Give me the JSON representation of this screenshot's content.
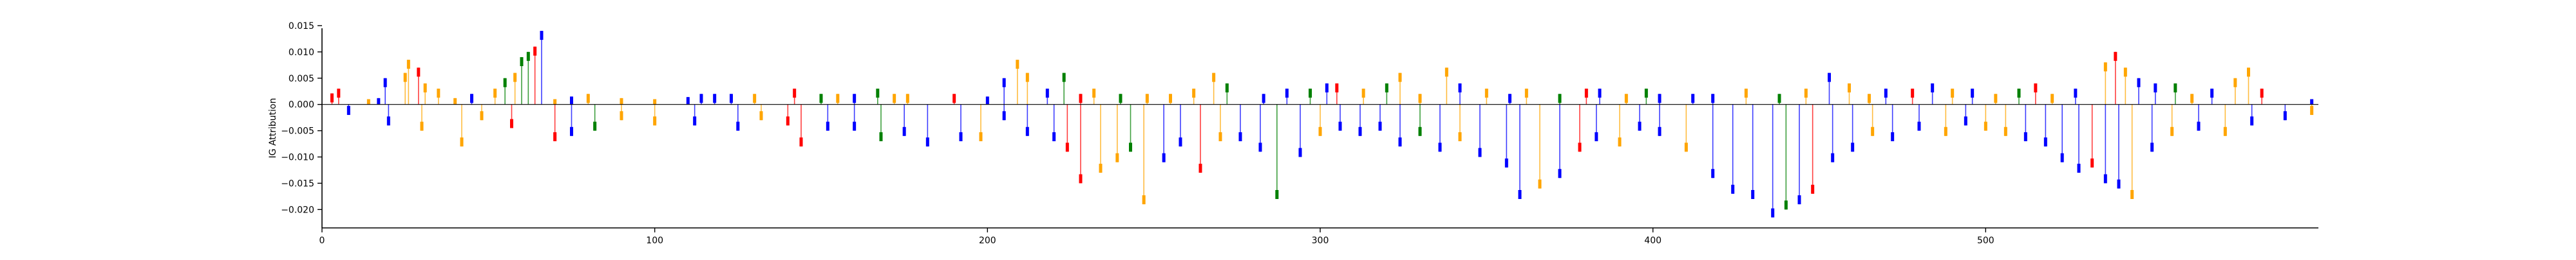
{
  "chart_data": {
    "type": "bar",
    "title": "",
    "xlabel": "",
    "ylabel": "IG Attribution",
    "xlim": [
      0,
      600
    ],
    "ylim": [
      -0.0235,
      0.0145
    ],
    "xticks": [
      0,
      100,
      200,
      300,
      400,
      500
    ],
    "yticks": [
      0.015,
      0.01,
      0.005,
      0.0,
      -0.005,
      -0.01,
      -0.015,
      -0.02
    ],
    "ytick_labels": [
      "0.015",
      "0.010",
      "0.005",
      "0.000",
      "−0.005",
      "−0.010",
      "−0.015",
      "−0.020"
    ],
    "grid": false,
    "legend": false,
    "colors": {
      "A": "#008000",
      "C": "#0000ff",
      "G": "#ffa500",
      "T": "#ff0000",
      "axis": "#000000"
    },
    "series": [
      {
        "base": "positive",
        "points": [
          [
            3,
            0.0021,
            "T"
          ],
          [
            5,
            0.003,
            "T"
          ],
          [
            14,
            0.001,
            "G"
          ],
          [
            17,
            0.0012,
            "C"
          ],
          [
            19,
            0.005,
            "C"
          ],
          [
            25,
            0.006,
            "G"
          ],
          [
            26,
            0.0085,
            "G"
          ],
          [
            29,
            0.007,
            "T"
          ],
          [
            31,
            0.004,
            "G"
          ],
          [
            35,
            0.003,
            "G"
          ],
          [
            40,
            0.0012,
            "G"
          ],
          [
            45,
            0.002,
            "C"
          ],
          [
            52,
            0.003,
            "G"
          ],
          [
            55,
            0.005,
            "A"
          ],
          [
            58,
            0.006,
            "G"
          ],
          [
            60,
            0.009,
            "A"
          ],
          [
            62,
            0.01,
            "A"
          ],
          [
            64,
            0.011,
            "T"
          ],
          [
            66,
            0.014,
            "C"
          ],
          [
            70,
            0.001,
            "G"
          ],
          [
            75,
            0.0015,
            "C"
          ],
          [
            80,
            0.002,
            "G"
          ],
          [
            90,
            0.0012,
            "G"
          ],
          [
            100,
            0.001,
            "G"
          ],
          [
            110,
            0.0014,
            "C"
          ],
          [
            114,
            0.002,
            "C"
          ],
          [
            118,
            0.002,
            "C"
          ],
          [
            123,
            0.002,
            "C"
          ],
          [
            130,
            0.002,
            "G"
          ],
          [
            142,
            0.003,
            "T"
          ],
          [
            150,
            0.002,
            "A"
          ],
          [
            155,
            0.002,
            "G"
          ],
          [
            160,
            0.002,
            "C"
          ],
          [
            167,
            0.003,
            "A"
          ],
          [
            172,
            0.002,
            "G"
          ],
          [
            176,
            0.002,
            "G"
          ],
          [
            190,
            0.002,
            "T"
          ],
          [
            200,
            0.0015,
            "C"
          ],
          [
            205,
            0.005,
            "C"
          ],
          [
            209,
            0.0085,
            "G"
          ],
          [
            212,
            0.006,
            "G"
          ],
          [
            218,
            0.003,
            "C"
          ],
          [
            223,
            0.006,
            "A"
          ],
          [
            228,
            0.002,
            "T"
          ],
          [
            232,
            0.003,
            "G"
          ],
          [
            240,
            0.002,
            "A"
          ],
          [
            248,
            0.002,
            "G"
          ],
          [
            255,
            0.002,
            "G"
          ],
          [
            262,
            0.003,
            "G"
          ],
          [
            268,
            0.006,
            "G"
          ],
          [
            272,
            0.004,
            "A"
          ],
          [
            283,
            0.002,
            "C"
          ],
          [
            290,
            0.003,
            "C"
          ],
          [
            297,
            0.003,
            "A"
          ],
          [
            302,
            0.004,
            "C"
          ],
          [
            305,
            0.004,
            "T"
          ],
          [
            313,
            0.003,
            "G"
          ],
          [
            320,
            0.004,
            "A"
          ],
          [
            324,
            0.006,
            "G"
          ],
          [
            330,
            0.002,
            "G"
          ],
          [
            338,
            0.007,
            "G"
          ],
          [
            342,
            0.004,
            "C"
          ],
          [
            350,
            0.003,
            "G"
          ],
          [
            357,
            0.002,
            "C"
          ],
          [
            362,
            0.003,
            "G"
          ],
          [
            372,
            0.002,
            "A"
          ],
          [
            380,
            0.003,
            "T"
          ],
          [
            384,
            0.003,
            "C"
          ],
          [
            392,
            0.002,
            "G"
          ],
          [
            398,
            0.003,
            "A"
          ],
          [
            402,
            0.002,
            "C"
          ],
          [
            412,
            0.002,
            "C"
          ],
          [
            418,
            0.002,
            "C"
          ],
          [
            428,
            0.003,
            "G"
          ],
          [
            438,
            0.002,
            "A"
          ],
          [
            446,
            0.003,
            "G"
          ],
          [
            453,
            0.006,
            "C"
          ],
          [
            459,
            0.004,
            "G"
          ],
          [
            465,
            0.002,
            "G"
          ],
          [
            470,
            0.003,
            "C"
          ],
          [
            478,
            0.003,
            "T"
          ],
          [
            484,
            0.004,
            "C"
          ],
          [
            490,
            0.003,
            "G"
          ],
          [
            496,
            0.003,
            "C"
          ],
          [
            503,
            0.002,
            "G"
          ],
          [
            510,
            0.003,
            "A"
          ],
          [
            515,
            0.004,
            "T"
          ],
          [
            520,
            0.002,
            "G"
          ],
          [
            527,
            0.003,
            "C"
          ],
          [
            536,
            0.008,
            "G"
          ],
          [
            539,
            0.01,
            "T"
          ],
          [
            542,
            0.007,
            "G"
          ],
          [
            546,
            0.005,
            "C"
          ],
          [
            551,
            0.004,
            "C"
          ],
          [
            557,
            0.004,
            "A"
          ],
          [
            562,
            0.002,
            "G"
          ],
          [
            568,
            0.003,
            "C"
          ],
          [
            575,
            0.005,
            "G"
          ],
          [
            579,
            0.007,
            "G"
          ],
          [
            583,
            0.003,
            "T"
          ],
          [
            598,
            0.001,
            "C"
          ]
        ]
      },
      {
        "base": "negative",
        "points": [
          [
            8,
            -0.002,
            "C"
          ],
          [
            20,
            -0.004,
            "C"
          ],
          [
            30,
            -0.005,
            "G"
          ],
          [
            42,
            -0.008,
            "G"
          ],
          [
            48,
            -0.003,
            "G"
          ],
          [
            57,
            -0.0045,
            "T"
          ],
          [
            70,
            -0.007,
            "T"
          ],
          [
            75,
            -0.006,
            "C"
          ],
          [
            82,
            -0.005,
            "A"
          ],
          [
            90,
            -0.003,
            "G"
          ],
          [
            100,
            -0.004,
            "G"
          ],
          [
            112,
            -0.004,
            "C"
          ],
          [
            125,
            -0.005,
            "C"
          ],
          [
            132,
            -0.003,
            "G"
          ],
          [
            140,
            -0.004,
            "T"
          ],
          [
            144,
            -0.008,
            "T"
          ],
          [
            152,
            -0.005,
            "C"
          ],
          [
            160,
            -0.005,
            "C"
          ],
          [
            168,
            -0.007,
            "A"
          ],
          [
            175,
            -0.006,
            "C"
          ],
          [
            182,
            -0.008,
            "C"
          ],
          [
            192,
            -0.007,
            "C"
          ],
          [
            198,
            -0.007,
            "G"
          ],
          [
            205,
            -0.003,
            "C"
          ],
          [
            212,
            -0.006,
            "C"
          ],
          [
            220,
            -0.007,
            "C"
          ],
          [
            224,
            -0.009,
            "T"
          ],
          [
            228,
            -0.015,
            "T"
          ],
          [
            234,
            -0.013,
            "G"
          ],
          [
            239,
            -0.011,
            "G"
          ],
          [
            243,
            -0.009,
            "A"
          ],
          [
            247,
            -0.019,
            "G"
          ],
          [
            253,
            -0.011,
            "C"
          ],
          [
            258,
            -0.008,
            "C"
          ],
          [
            264,
            -0.013,
            "T"
          ],
          [
            270,
            -0.007,
            "G"
          ],
          [
            276,
            -0.007,
            "C"
          ],
          [
            282,
            -0.009,
            "C"
          ],
          [
            287,
            -0.018,
            "A"
          ],
          [
            294,
            -0.01,
            "C"
          ],
          [
            300,
            -0.006,
            "G"
          ],
          [
            306,
            -0.005,
            "C"
          ],
          [
            312,
            -0.006,
            "C"
          ],
          [
            318,
            -0.005,
            "C"
          ],
          [
            324,
            -0.008,
            "C"
          ],
          [
            330,
            -0.006,
            "A"
          ],
          [
            336,
            -0.009,
            "C"
          ],
          [
            342,
            -0.007,
            "G"
          ],
          [
            348,
            -0.01,
            "C"
          ],
          [
            356,
            -0.012,
            "C"
          ],
          [
            360,
            -0.018,
            "C"
          ],
          [
            366,
            -0.016,
            "G"
          ],
          [
            372,
            -0.014,
            "C"
          ],
          [
            378,
            -0.009,
            "T"
          ],
          [
            383,
            -0.007,
            "C"
          ],
          [
            390,
            -0.008,
            "G"
          ],
          [
            396,
            -0.005,
            "C"
          ],
          [
            402,
            -0.006,
            "C"
          ],
          [
            410,
            -0.009,
            "G"
          ],
          [
            418,
            -0.014,
            "C"
          ],
          [
            424,
            -0.017,
            "C"
          ],
          [
            430,
            -0.018,
            "C"
          ],
          [
            436,
            -0.0215,
            "C"
          ],
          [
            440,
            -0.02,
            "A"
          ],
          [
            444,
            -0.019,
            "C"
          ],
          [
            448,
            -0.017,
            "T"
          ],
          [
            454,
            -0.011,
            "C"
          ],
          [
            460,
            -0.009,
            "C"
          ],
          [
            466,
            -0.006,
            "G"
          ],
          [
            472,
            -0.007,
            "C"
          ],
          [
            480,
            -0.005,
            "C"
          ],
          [
            488,
            -0.006,
            "G"
          ],
          [
            494,
            -0.004,
            "C"
          ],
          [
            500,
            -0.005,
            "G"
          ],
          [
            506,
            -0.006,
            "G"
          ],
          [
            512,
            -0.007,
            "C"
          ],
          [
            518,
            -0.008,
            "C"
          ],
          [
            523,
            -0.011,
            "C"
          ],
          [
            528,
            -0.013,
            "C"
          ],
          [
            532,
            -0.012,
            "T"
          ],
          [
            536,
            -0.015,
            "C"
          ],
          [
            540,
            -0.016,
            "C"
          ],
          [
            544,
            -0.018,
            "G"
          ],
          [
            550,
            -0.009,
            "C"
          ],
          [
            556,
            -0.006,
            "G"
          ],
          [
            564,
            -0.005,
            "C"
          ],
          [
            572,
            -0.006,
            "G"
          ],
          [
            580,
            -0.004,
            "C"
          ],
          [
            590,
            -0.003,
            "C"
          ],
          [
            598,
            -0.002,
            "G"
          ]
        ]
      }
    ]
  }
}
